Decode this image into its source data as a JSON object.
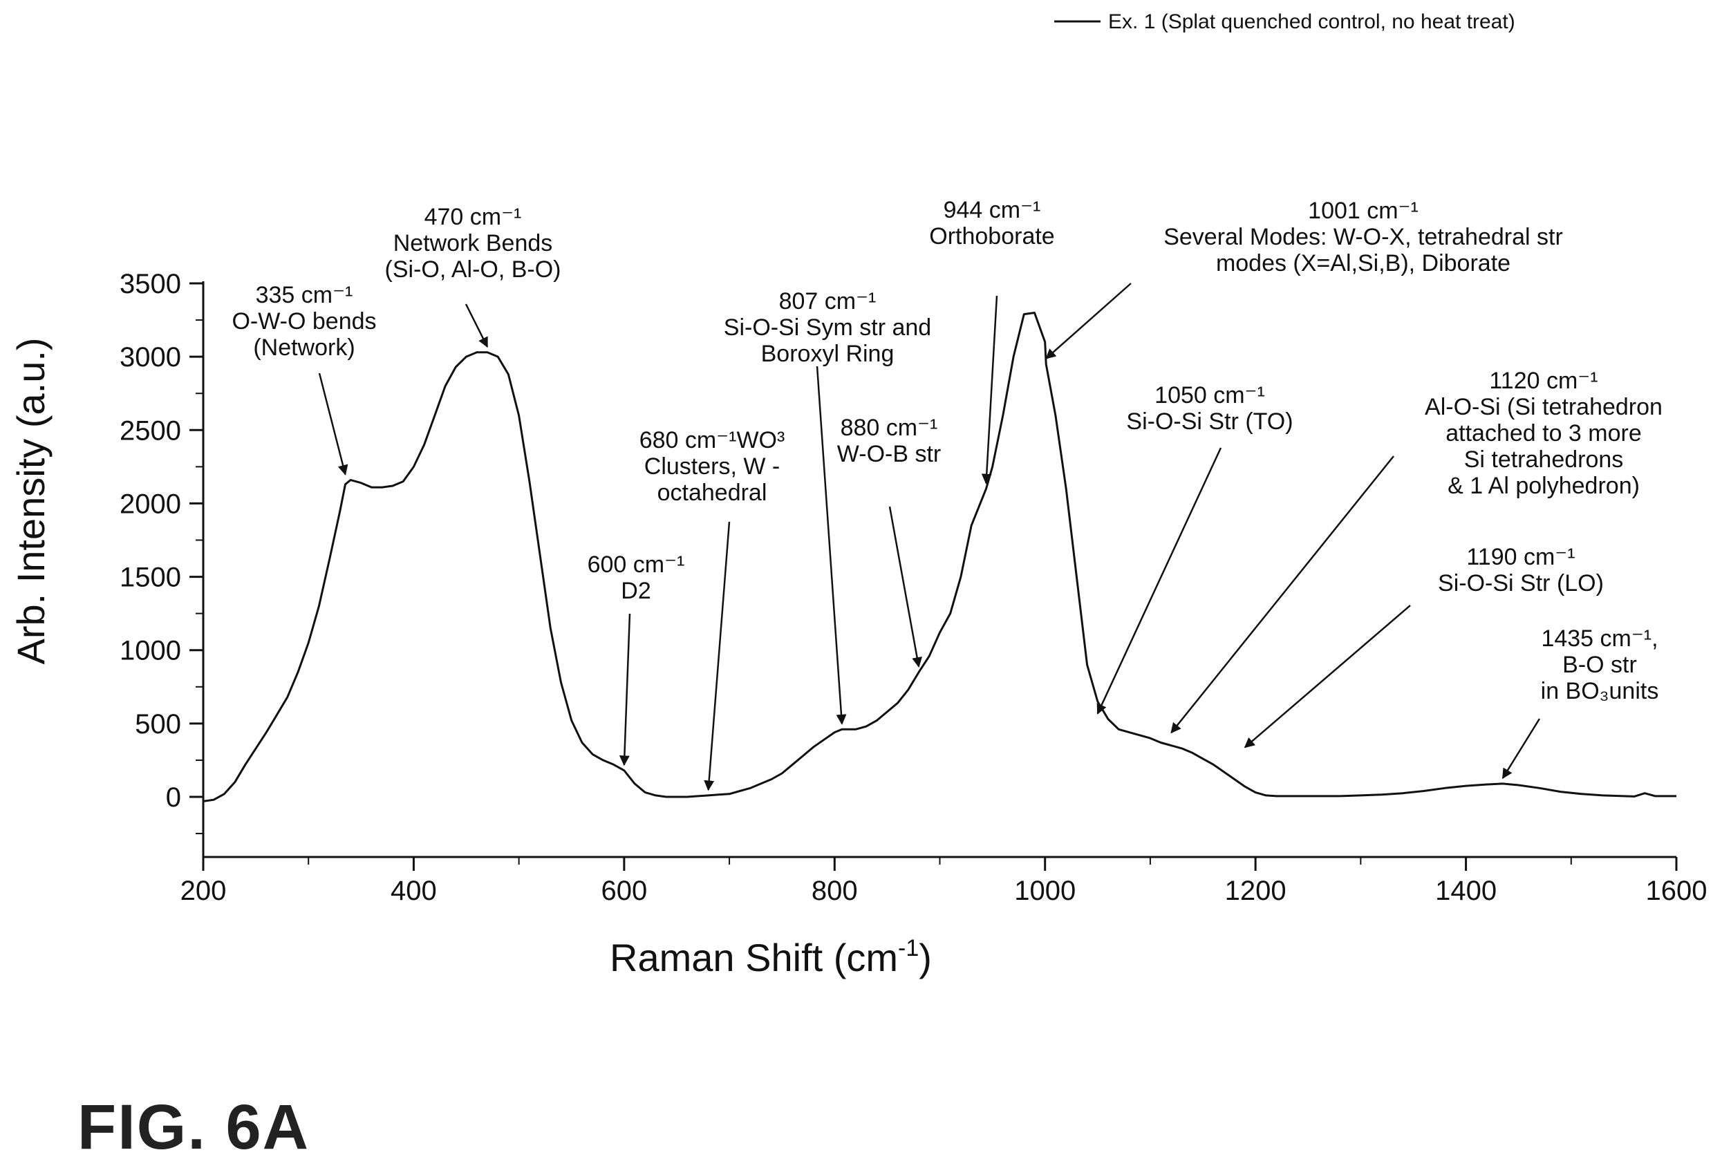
{
  "figure_label": "FIG. 6A",
  "chart_data": {
    "type": "line",
    "xlabel": "Raman Shift (cm",
    "xlabel_sup": "-1",
    "xlabel_close": ")",
    "ylabel": "Arb. Intensity (a.u.)",
    "xlim": [
      200,
      1600
    ],
    "ylim": [
      -400,
      3500
    ],
    "x_ticks": [
      "200",
      "400",
      "600",
      "800",
      "1000",
      "1200",
      "1400",
      "1600"
    ],
    "y_ticks": [
      "0",
      "500",
      "1000",
      "1500",
      "2000",
      "2500",
      "3000",
      "3500"
    ],
    "legend": {
      "position": "top-right",
      "entries": [
        "Ex. 1 (Splat quenched control, no heat treat)"
      ]
    },
    "series": [
      {
        "name": "Ex. 1 (Splat quenched control, no heat treat)",
        "color": "#111111",
        "x": [
          200,
          210,
          220,
          230,
          240,
          250,
          260,
          270,
          280,
          290,
          300,
          310,
          320,
          330,
          335,
          340,
          350,
          360,
          370,
          380,
          390,
          400,
          410,
          420,
          430,
          440,
          450,
          460,
          470,
          480,
          490,
          500,
          510,
          520,
          530,
          540,
          550,
          560,
          570,
          580,
          590,
          600,
          610,
          620,
          630,
          640,
          650,
          660,
          670,
          680,
          690,
          700,
          710,
          720,
          730,
          740,
          750,
          760,
          770,
          780,
          790,
          800,
          807,
          820,
          830,
          840,
          850,
          860,
          870,
          880,
          890,
          900,
          910,
          920,
          930,
          944,
          950,
          960,
          970,
          980,
          990,
          1000,
          1001,
          1010,
          1020,
          1030,
          1040,
          1050,
          1060,
          1070,
          1080,
          1090,
          1100,
          1110,
          1120,
          1130,
          1140,
          1150,
          1160,
          1170,
          1180,
          1190,
          1200,
          1210,
          1220,
          1230,
          1240,
          1260,
          1280,
          1300,
          1320,
          1340,
          1360,
          1380,
          1400,
          1420,
          1435,
          1450,
          1470,
          1490,
          1510,
          1530,
          1550,
          1560,
          1570,
          1580,
          1600
        ],
        "y": [
          -30,
          -20,
          20,
          100,
          220,
          330,
          440,
          560,
          680,
          850,
          1050,
          1300,
          1620,
          1950,
          2130,
          2160,
          2140,
          2110,
          2110,
          2120,
          2150,
          2250,
          2400,
          2600,
          2800,
          2930,
          3000,
          3030,
          3030,
          3000,
          2880,
          2600,
          2150,
          1650,
          1150,
          780,
          520,
          370,
          290,
          250,
          220,
          180,
          90,
          30,
          10,
          0,
          0,
          0,
          5,
          10,
          15,
          20,
          40,
          60,
          90,
          120,
          160,
          220,
          280,
          340,
          390,
          440,
          460,
          460,
          480,
          520,
          580,
          640,
          730,
          850,
          960,
          1120,
          1250,
          1500,
          1850,
          2100,
          2250,
          2600,
          3000,
          3290,
          3300,
          3100,
          2950,
          2600,
          2100,
          1500,
          900,
          650,
          530,
          460,
          440,
          420,
          400,
          370,
          350,
          330,
          300,
          260,
          220,
          170,
          120,
          70,
          30,
          10,
          5,
          5,
          5,
          5,
          5,
          10,
          15,
          25,
          40,
          60,
          75,
          85,
          90,
          80,
          60,
          35,
          20,
          10,
          5,
          3,
          25,
          5,
          5
        ]
      }
    ],
    "annotations": [
      {
        "lines": [
          "335 cm⁻¹",
          "O-W-O bends",
          "(Network)"
        ],
        "x": 335,
        "y": 2160
      },
      {
        "lines": [
          "470 cm⁻¹",
          "Network Bends",
          "(Si-O, Al-O, B-O)"
        ],
        "x": 470,
        "y": 3030
      },
      {
        "lines": [
          "600 cm⁻¹",
          "D2"
        ],
        "x": 600,
        "y": 180
      },
      {
        "lines": [
          "680 cm⁻¹WO³",
          "Clusters, W -",
          "octahedral"
        ],
        "x": 680,
        "y": 10
      },
      {
        "lines": [
          "807 cm⁻¹",
          "Si-O-Si Sym str and",
          "Boroxyl Ring"
        ],
        "x": 807,
        "y": 460
      },
      {
        "lines": [
          "880 cm⁻¹",
          "W-O-B str"
        ],
        "x": 880,
        "y": 850
      },
      {
        "lines": [
          "944 cm⁻¹",
          "Orthoborate"
        ],
        "x": 944,
        "y": 2100
      },
      {
        "lines": [
          "1001 cm⁻¹",
          "Several Modes:  W-O-X, tetrahedral str",
          "modes (X=Al,Si,B), Diborate"
        ],
        "x": 1001,
        "y": 2950
      },
      {
        "lines": [
          "1050 cm⁻¹",
          "Si-O-Si Str (TO)"
        ],
        "x": 1050,
        "y": 530
      },
      {
        "lines": [
          "1120 cm⁻¹",
          "Al-O-Si (Si tetrahedron",
          "attached to 3 more",
          "Si tetrahedrons",
          "& 1 Al polyhedron)"
        ],
        "x": 1120,
        "y": 400
      },
      {
        "lines": [
          "1190 cm⁻¹",
          "Si-O-Si Str (LO)"
        ],
        "x": 1190,
        "y": 300
      },
      {
        "lines": [
          "1435 cm⁻¹,",
          "B-O str",
          "in BO₃units"
        ],
        "x": 1435,
        "y": 90
      }
    ]
  }
}
